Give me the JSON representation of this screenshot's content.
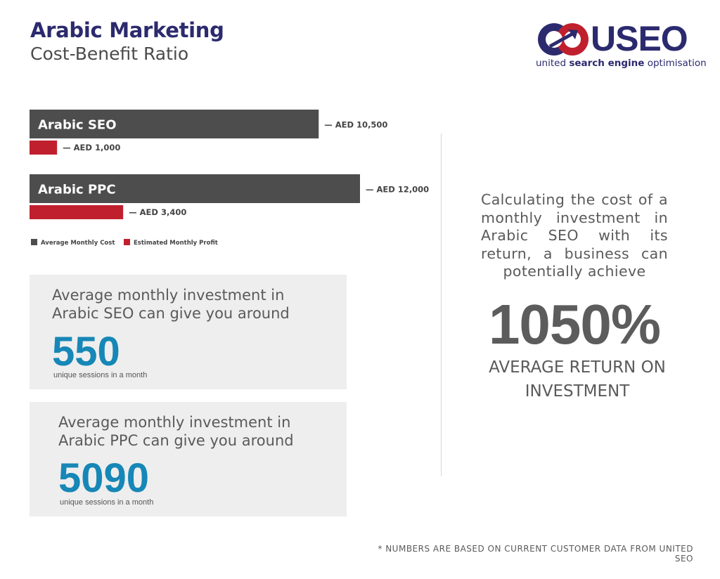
{
  "header": {
    "title": "Arabic Marketing",
    "subtitle": "Cost-Benefit Ratio"
  },
  "logo": {
    "word": "USEO",
    "tag_plain1": "united ",
    "tag_bold": "search engine",
    "tag_plain2": " optimisation",
    "colors": {
      "navy": "#2c2a6e",
      "red": "#c0202e"
    }
  },
  "colors": {
    "cost": "#4d4d4d",
    "profit": "#c0202e",
    "accent": "#1687b7"
  },
  "chart_data": {
    "type": "bar",
    "orientation": "horizontal",
    "categories": [
      "Arabic SEO",
      "Arabic PPC"
    ],
    "series": [
      {
        "name": "Average Monthly Cost",
        "values": [
          10500,
          12000
        ],
        "labels": [
          "AED 10,500",
          "AED 12,000"
        ],
        "color": "#4d4d4d"
      },
      {
        "name": "Estimated Monthly Profit",
        "values": [
          1000,
          3400
        ],
        "labels": [
          "AED 1,000",
          "AED 3,400"
        ],
        "color": "#c0202e"
      }
    ],
    "legend_position": "bottom-left",
    "grid": false
  },
  "box1": {
    "text": "Average monthly investment in Arabic SEO can give you around",
    "number": "550",
    "sub": "unique sessions in a month"
  },
  "box2": {
    "text": "Average monthly investment in Arabic PPC can give you around",
    "number": "5090",
    "sub": "unique sessions in a month"
  },
  "right": {
    "calc": "Calculating the cost of a monthly investment in Arabic SEO with its return, a business can potentially achieve",
    "big": "1050%",
    "roi": "AVERAGE RETURN ON INVESTMENT"
  },
  "footnote": "* NUMBERS ARE BASED ON CURRENT CUSTOMER DATA FROM UNITED SEO"
}
